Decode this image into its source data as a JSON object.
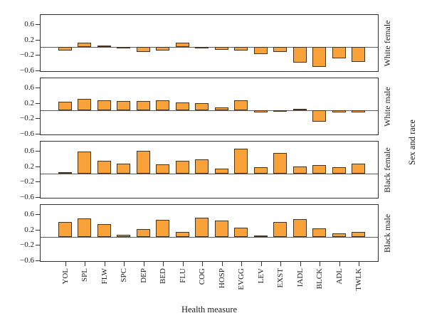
{
  "chart_data": {
    "type": "bar",
    "title": "",
    "xlabel": "Health measure",
    "ylabel_right": "Sex and race",
    "categories": [
      "YOL",
      "SPL",
      "FLW",
      "SPC",
      "DEP",
      "BED",
      "FLU",
      "COG",
      "HOSP",
      "EVGG",
      "LEV",
      "EXST",
      "IADL",
      "BLCK",
      "ADL",
      "TWLK"
    ],
    "panels": [
      {
        "label": "White female",
        "values": [
          -0.1,
          0.12,
          0.03,
          -0.01,
          -0.12,
          -0.1,
          0.11,
          -0.02,
          -0.08,
          -0.1,
          -0.19,
          -0.13,
          -0.4,
          -0.52,
          -0.3,
          -0.38
        ]
      },
      {
        "label": "White male",
        "values": [
          0.22,
          0.3,
          0.27,
          0.24,
          0.24,
          0.26,
          0.2,
          0.18,
          0.07,
          0.26,
          -0.05,
          -0.01,
          0.03,
          -0.3,
          -0.06,
          -0.05
        ]
      },
      {
        "label": "Black female",
        "values": [
          0.04,
          0.58,
          0.33,
          0.26,
          0.6,
          0.25,
          0.34,
          0.38,
          0.14,
          0.66,
          0.17,
          0.55,
          0.18,
          0.23,
          0.17,
          0.26
        ]
      },
      {
        "label": "Black male",
        "values": [
          0.4,
          0.48,
          0.34,
          0.05,
          0.21,
          0.44,
          0.13,
          0.5,
          0.43,
          0.25,
          0.04,
          0.39,
          0.46,
          0.22,
          0.1,
          0.14
        ]
      }
    ],
    "ytick_values": [
      0.6,
      0.2,
      -0.2,
      -0.6
    ],
    "ytick_labels": [
      "0.6",
      "0.2",
      "−0.2",
      "−0.6"
    ],
    "ylim": [
      -0.7,
      0.87
    ],
    "grid": "off",
    "legend": "none",
    "colors": {
      "bar_fill": "#F9A23A",
      "bar_stroke": "#44341E",
      "panel_border": "#2E2E2E",
      "zero_line": "#5C5C5C",
      "text": "#1C1C1C"
    }
  }
}
